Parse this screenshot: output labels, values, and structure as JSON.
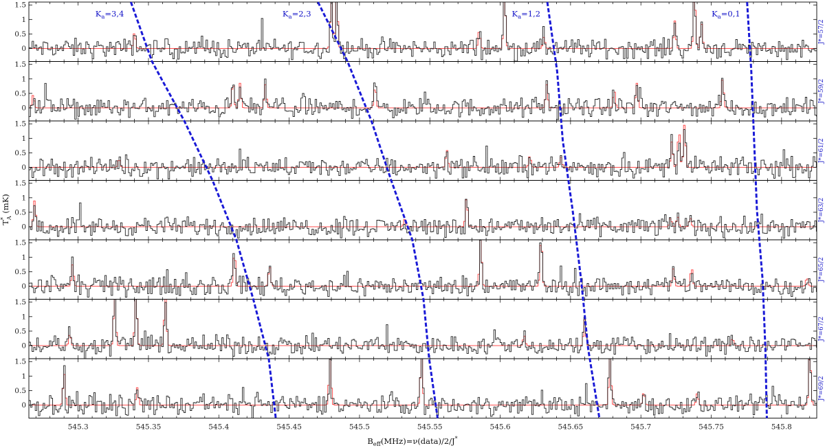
{
  "chart_data": {
    "type": "line",
    "title": "",
    "xlabel": "B_eff(MHz)=ν(data)/2/J*",
    "xlabel_parts": {
      "main": "B",
      "sub": "eff",
      "rest": "(MHz)=ν(data)/2/J",
      "sup": "*"
    },
    "ylabel": "T*A (mK)",
    "ylabel_parts": {
      "main": "T",
      "sup": "*",
      "sub": "A",
      "rest": " (mK)"
    },
    "xlim": [
      545.265,
      545.825
    ],
    "ylim": [
      -0.45,
      1.6
    ],
    "x_ticks": [
      545.3,
      545.35,
      545.4,
      545.45,
      545.5,
      545.55,
      545.6,
      545.65,
      545.7,
      545.75,
      545.8
    ],
    "x_tick_labels": [
      "545.3",
      "545.35",
      "545.4",
      "545.45",
      "545.5",
      "545.55",
      "545.6",
      "545.65",
      "545.7",
      "545.75",
      "545.8"
    ],
    "y_ticks": [
      0,
      0.5,
      1,
      1.5
    ],
    "y_tick_labels": [
      "0",
      "0.5",
      "1",
      "1.5"
    ],
    "grid": false,
    "colors": {
      "observed": "#222222",
      "model": "#ff4d4d",
      "band": "#1a1ad6",
      "band_text": "#1414c8"
    },
    "panels": [
      {
        "j_label": "J*=57/2",
        "lines": [
          {
            "x": 545.4795,
            "h": 1.9
          },
          {
            "x": 545.4832,
            "h": 2.0
          },
          {
            "x": 545.6025,
            "h": 1.9
          },
          {
            "x": 545.6305,
            "h": 0.4
          },
          {
            "x": 545.7235,
            "h": 0.95
          },
          {
            "x": 545.7375,
            "h": 1.9
          },
          {
            "x": 545.7425,
            "h": 0.85
          },
          {
            "x": 545.3395,
            "h": 0.55
          },
          {
            "x": 545.5845,
            "h": 0.6
          }
        ]
      },
      {
        "j_label": "J*=59/2",
        "lines": [
          {
            "x": 545.2675,
            "h": 0.45
          },
          {
            "x": 545.4095,
            "h": 0.9
          },
          {
            "x": 545.4145,
            "h": 0.85
          },
          {
            "x": 545.4325,
            "h": 0.8
          },
          {
            "x": 545.5105,
            "h": 0.75
          },
          {
            "x": 545.6325,
            "h": 0.8
          },
          {
            "x": 545.6805,
            "h": 0.6
          },
          {
            "x": 545.6965,
            "h": 0.85
          },
          {
            "x": 545.7575,
            "h": 1.0
          }
        ]
      },
      {
        "j_label": "J*=61/2",
        "lines": [
          {
            "x": 545.3285,
            "h": 0.3
          },
          {
            "x": 545.6425,
            "h": 0.35
          },
          {
            "x": 545.7215,
            "h": 0.9
          },
          {
            "x": 545.7265,
            "h": 1.3
          },
          {
            "x": 545.7305,
            "h": 1.5
          },
          {
            "x": 545.5615,
            "h": 0.6
          },
          {
            "x": 545.6205,
            "h": 0.4
          }
        ]
      },
      {
        "j_label": "J*=63/2",
        "lines": [
          {
            "x": 545.2685,
            "h": 0.9
          },
          {
            "x": 545.5755,
            "h": 1.0
          },
          {
            "x": 545.7205,
            "h": 0.3
          },
          {
            "x": 545.7255,
            "h": 0.35
          },
          {
            "x": 545.7345,
            "h": 0.3
          },
          {
            "x": 545.5315,
            "h": 0.25
          }
        ]
      },
      {
        "j_label": "J*=65/2",
        "lines": [
          {
            "x": 545.2955,
            "h": 0.75
          },
          {
            "x": 545.4105,
            "h": 1.2
          },
          {
            "x": 545.4355,
            "h": 0.7
          },
          {
            "x": 545.5855,
            "h": 1.7
          },
          {
            "x": 545.6285,
            "h": 1.7
          },
          {
            "x": 545.7225,
            "h": 0.6
          },
          {
            "x": 545.7355,
            "h": 0.65
          },
          {
            "x": 545.8175,
            "h": 0.3
          }
        ]
      },
      {
        "j_label": "J*=67/2",
        "lines": [
          {
            "x": 545.2935,
            "h": 0.4
          },
          {
            "x": 545.3255,
            "h": 1.9
          },
          {
            "x": 545.3405,
            "h": 1.9
          },
          {
            "x": 545.3615,
            "h": 1.9
          },
          {
            "x": 545.6595,
            "h": 0.9
          },
          {
            "x": 545.6165,
            "h": 0.35
          },
          {
            "x": 545.7645,
            "h": 0.25
          }
        ]
      },
      {
        "j_label": "J*=69/2",
        "lines": [
          {
            "x": 545.2895,
            "h": 1.1
          },
          {
            "x": 545.4785,
            "h": 1.8
          },
          {
            "x": 545.5435,
            "h": 1.8
          },
          {
            "x": 545.6775,
            "h": 1.8
          },
          {
            "x": 545.7015,
            "h": 0.45
          },
          {
            "x": 545.8195,
            "h": 1.8
          },
          {
            "x": 545.3415,
            "h": 0.6
          },
          {
            "x": 545.7395,
            "h": 0.4
          }
        ]
      }
    ],
    "bands": [
      {
        "label_main": "K",
        "label_sub": "a",
        "label_rest": "=3,4",
        "points": [
          [
            545.3375,
            1.75
          ],
          [
            545.3525,
            0.8
          ],
          [
            545.3755,
            -0.2
          ],
          [
            545.3955,
            0.7
          ],
          [
            545.4125,
            -0.1
          ],
          [
            545.4245,
            1.3
          ],
          [
            545.4355,
            0.1
          ],
          [
            545.4405,
            -0.45
          ]
        ]
      },
      {
        "label_main": "K",
        "label_sub": "a",
        "label_rest": "=2,3",
        "points": [
          [
            545.4705,
            1.75
          ],
          [
            545.4915,
            0.8
          ],
          [
            545.5085,
            -0.2
          ],
          [
            545.5225,
            0.9
          ],
          [
            545.5375,
            0.2
          ],
          [
            545.5455,
            0.3
          ],
          [
            545.5495,
            0.2
          ],
          [
            545.5555,
            -0.45
          ]
        ]
      },
      {
        "label_main": "K",
        "label_sub": "a",
        "label_rest": "=1,2",
        "points": [
          [
            545.6335,
            1.75
          ],
          [
            545.6405,
            0.8
          ],
          [
            545.6445,
            -0.2
          ],
          [
            545.6515,
            1.4
          ],
          [
            545.6575,
            0.1
          ],
          [
            545.6625,
            0.9
          ],
          [
            545.6705,
            -0.45
          ]
        ]
      },
      {
        "label_main": "K",
        "label_sub": "a",
        "label_rest": "=0,1",
        "points": [
          [
            545.7755,
            1.75
          ],
          [
            545.7785,
            0.8
          ],
          [
            545.7805,
            -0.2
          ],
          [
            545.7825,
            0.5
          ],
          [
            545.7865,
            0.2
          ],
          [
            545.7885,
            0.5
          ],
          [
            545.7895,
            -0.45
          ]
        ]
      }
    ]
  }
}
